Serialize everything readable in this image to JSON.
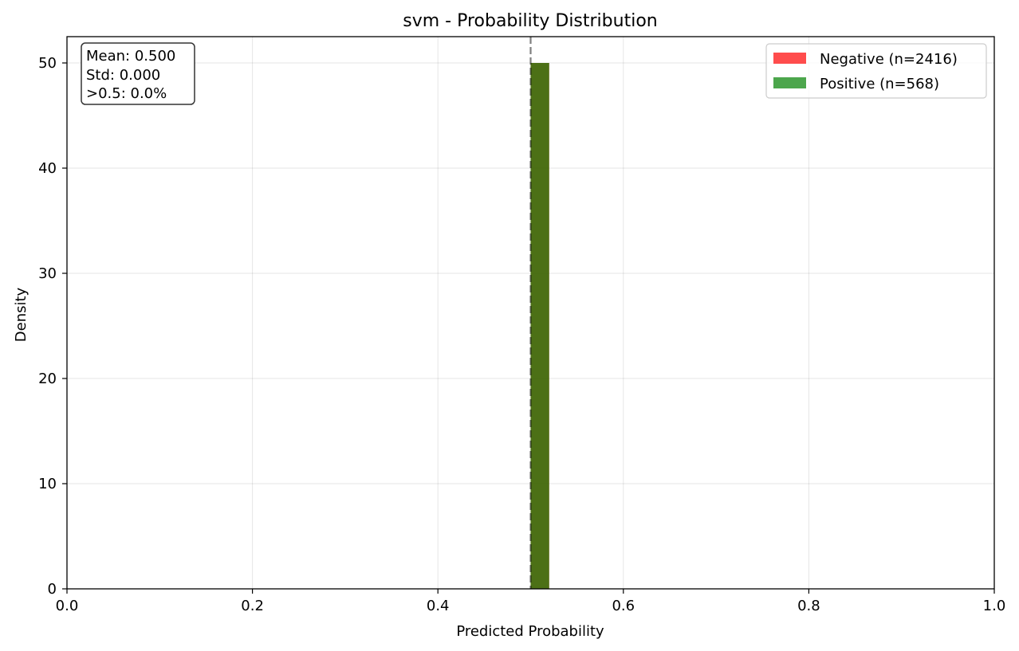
{
  "chart_data": {
    "type": "bar",
    "title": "svm - Probability Distribution",
    "xlabel": "Predicted Probability",
    "ylabel": "Density",
    "xlim": [
      0,
      1
    ],
    "ylim": [
      0,
      52.5
    ],
    "x_ticks": [
      0,
      0.2,
      0.4,
      0.6,
      0.8,
      1
    ],
    "x_tick_labels": [
      "0.0",
      "0.2",
      "0.4",
      "0.6",
      "0.8",
      "1.0"
    ],
    "y_ticks": [
      0,
      10,
      20,
      30,
      40,
      50
    ],
    "y_tick_labels": [
      "0",
      "10",
      "20",
      "30",
      "40",
      "50"
    ],
    "grid": true,
    "legend_position": "top-right",
    "threshold_line": 0.5,
    "series": [
      {
        "name": "Negative (n=2416)",
        "color": "#ff0000",
        "opacity": 0.7,
        "bins": [
          {
            "x0": 0.5,
            "x1": 0.52,
            "density": 50
          }
        ]
      },
      {
        "name": "Positive (n=568)",
        "color": "#008000",
        "opacity": 0.7,
        "bins": [
          {
            "x0": 0.5,
            "x1": 0.52,
            "density": 50
          }
        ]
      }
    ],
    "annotation": [
      "Mean: 0.500",
      "Std: 0.000",
      ">0.5: 0.0%"
    ]
  }
}
